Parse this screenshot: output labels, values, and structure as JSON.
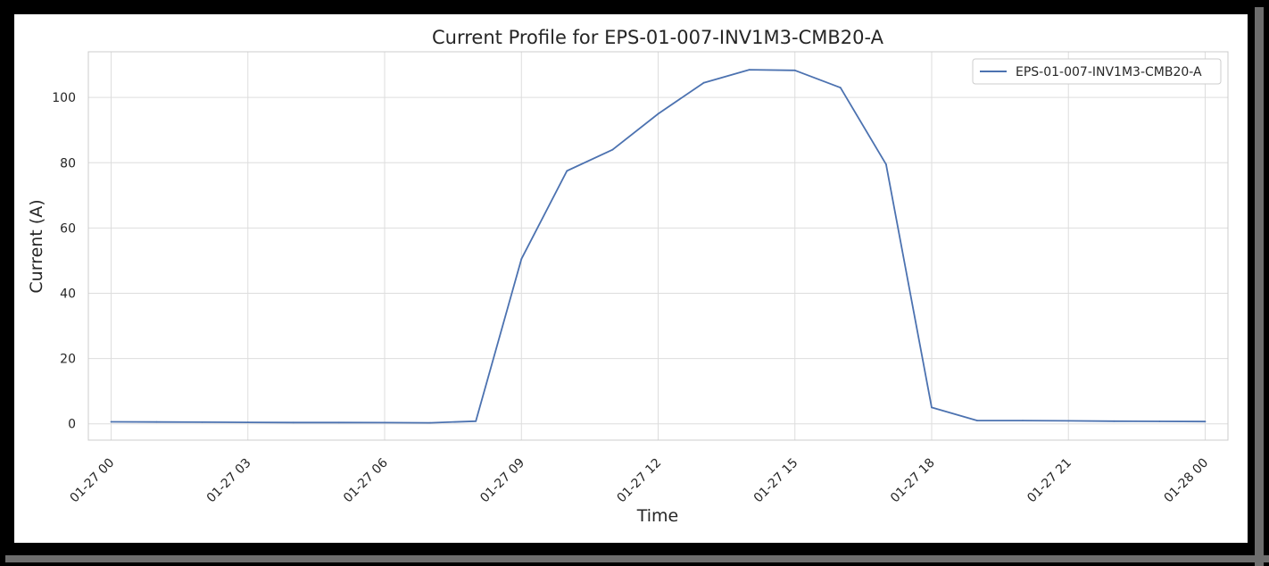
{
  "chart_data": {
    "type": "line",
    "title": "Current Profile for EPS-01-007-INV1M3-CMB20-A",
    "xlabel": "Time",
    "ylabel": "Current (A)",
    "xlim": [
      -0.5,
      24.5
    ],
    "ylim": [
      -5,
      114
    ],
    "x_ticks": [
      {
        "x": 0,
        "label": "01-27 00"
      },
      {
        "x": 3,
        "label": "01-27 03"
      },
      {
        "x": 6,
        "label": "01-27 06"
      },
      {
        "x": 9,
        "label": "01-27 09"
      },
      {
        "x": 12,
        "label": "01-27 12"
      },
      {
        "x": 15,
        "label": "01-27 15"
      },
      {
        "x": 18,
        "label": "01-27 18"
      },
      {
        "x": 21,
        "label": "01-27 21"
      },
      {
        "x": 24,
        "label": "01-28 00"
      }
    ],
    "y_ticks": [
      0,
      20,
      40,
      60,
      80,
      100
    ],
    "grid": true,
    "legend": "top-right",
    "color": "#4c72b0",
    "series": [
      {
        "name": "EPS-01-007-INV1M3-CMB20-A",
        "x": [
          0,
          1,
          2,
          3,
          4,
          5,
          6,
          7,
          8,
          9,
          10,
          11,
          12,
          13,
          14,
          15,
          16,
          17,
          18,
          19,
          20,
          21,
          22,
          23,
          24
        ],
        "values": [
          0.6,
          0.55,
          0.5,
          0.45,
          0.4,
          0.38,
          0.35,
          0.3,
          0.8,
          50.5,
          77.5,
          84.0,
          95.0,
          104.5,
          108.5,
          108.3,
          103.0,
          79.5,
          5.0,
          1.0,
          1.0,
          0.9,
          0.8,
          0.75,
          0.7
        ]
      }
    ]
  }
}
